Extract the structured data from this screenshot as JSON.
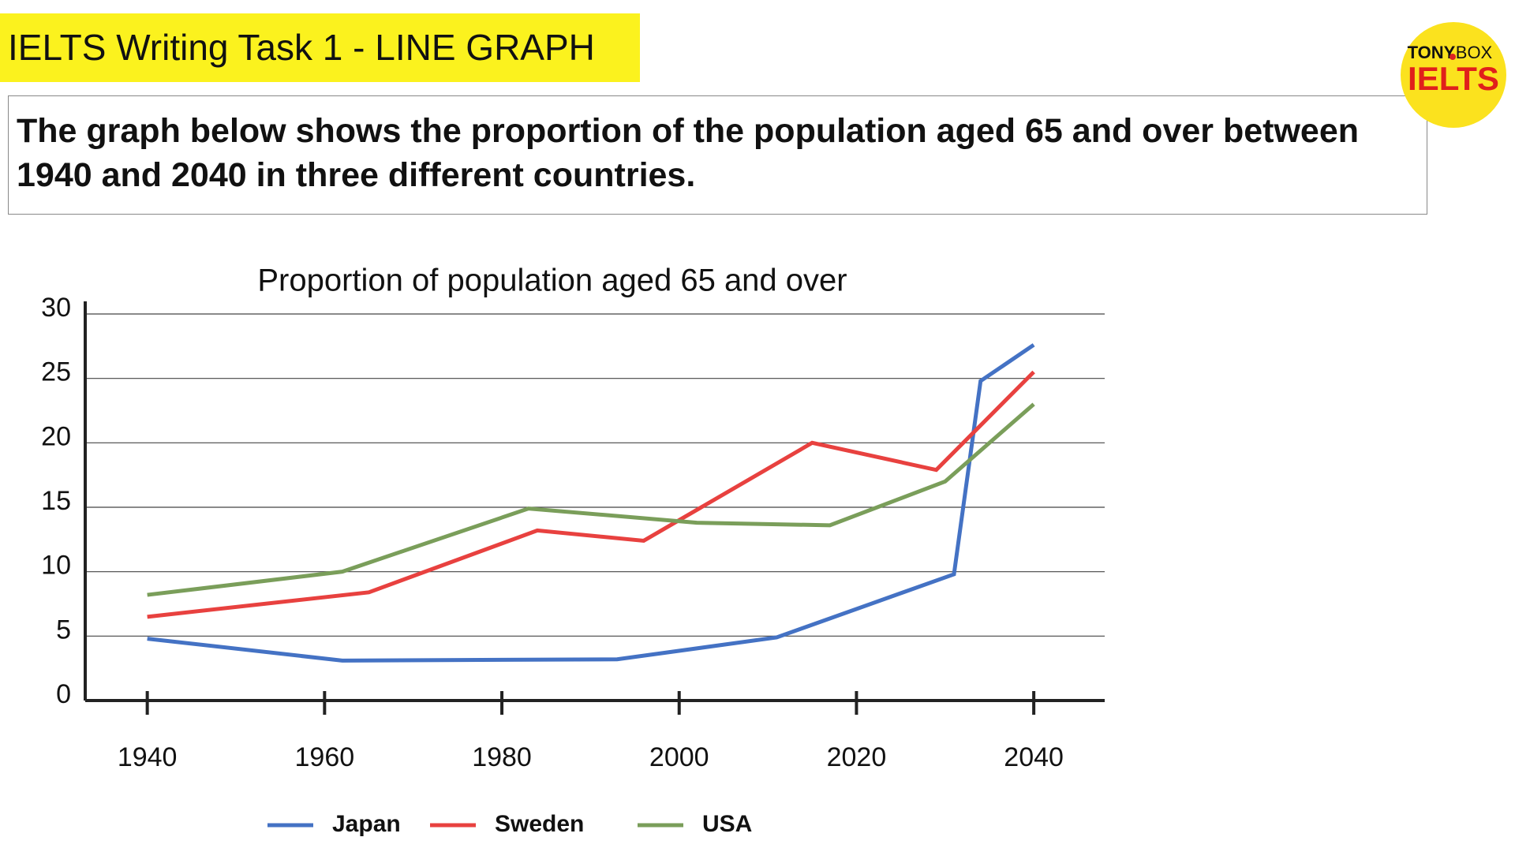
{
  "header": {
    "title": "IELTS Writing Task 1 - LINE GRAPH",
    "description": "The graph below shows the proportion of the population aged 65 and over between 1940 and 2040 in three different countries."
  },
  "logo": {
    "left": "TONY",
    "right": "BOX",
    "brand": "IELTS"
  },
  "chart_data": {
    "type": "line",
    "title": "Proportion of population aged 65 and over",
    "series": [
      {
        "name": "Japan",
        "color": "#4472c4",
        "x": [
          1940,
          1962,
          1993,
          2011,
          2031,
          2034,
          2040
        ],
        "values": [
          4.8,
          3.1,
          3.2,
          4.9,
          9.8,
          24.8,
          27.6
        ]
      },
      {
        "name": "Sweden",
        "color": "#e8413f",
        "x": [
          1940,
          1965,
          1984,
          1996,
          2015,
          2029,
          2040
        ],
        "values": [
          6.5,
          8.4,
          13.2,
          12.4,
          20,
          17.9,
          25.5
        ]
      },
      {
        "name": "USA",
        "color": "#7a9e5a",
        "x": [
          1940,
          1962,
          1983,
          2002,
          2017,
          2030,
          2040
        ],
        "values": [
          8.2,
          10,
          14.9,
          13.8,
          13.6,
          17,
          23
        ]
      }
    ],
    "xlim": [
      1933,
      2048
    ],
    "xticks": [
      1940,
      1960,
      1980,
      2000,
      2020,
      2040
    ],
    "ylim": [
      0,
      30
    ],
    "yticks": [
      0,
      5,
      10,
      15,
      20,
      25,
      30
    ],
    "grid": true,
    "legend": "bottom"
  }
}
